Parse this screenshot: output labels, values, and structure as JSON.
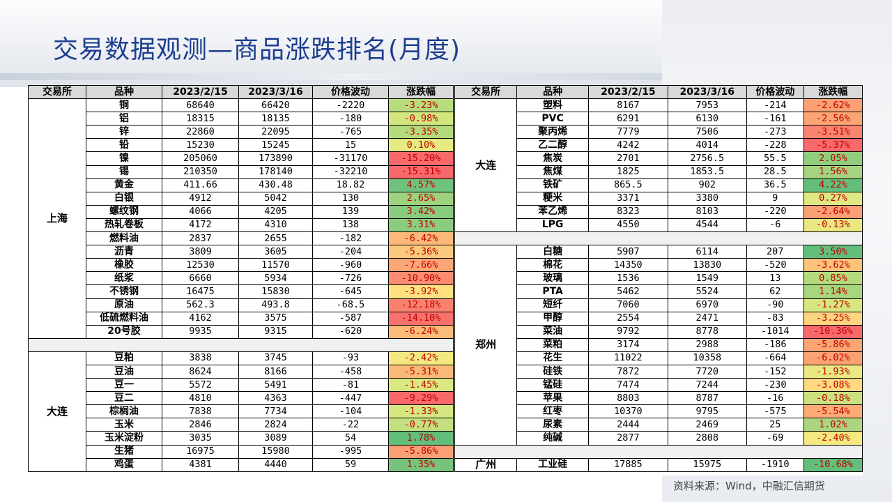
{
  "title": "交易数据观测—商品涨跌排名(月度)",
  "source": "资料来源：Wind，中融汇信期货",
  "headers": [
    "交易所",
    "品种",
    "2023/2/15",
    "2023/3/16",
    "价格波动",
    "涨跌幅"
  ],
  "left_groups": [
    {
      "exchange": "上海",
      "rows": [
        {
          "name": "铜",
          "p1": "68640",
          "p2": "66420",
          "diff": "-2220",
          "pct": "-3.23%",
          "color": "#b8dc7c"
        },
        {
          "name": "铝",
          "p1": "18315",
          "p2": "18135",
          "diff": "-180",
          "pct": "-0.98%",
          "color": "#d2e67e"
        },
        {
          "name": "锌",
          "p1": "22860",
          "p2": "22095",
          "diff": "-765",
          "pct": "-3.35%",
          "color": "#b5da7b"
        },
        {
          "name": "铅",
          "p1": "15230",
          "p2": "15245",
          "diff": "15",
          "pct": "0.10%",
          "color": "#e7ea80"
        },
        {
          "name": "镍",
          "p1": "205060",
          "p2": "173890",
          "diff": "-31170",
          "pct": "-15.20%",
          "color": "#f8696b"
        },
        {
          "name": "锡",
          "p1": "210350",
          "p2": "178140",
          "diff": "-32210",
          "pct": "-15.31%",
          "color": "#f8696b"
        },
        {
          "name": "黄金",
          "p1": "411.66",
          "p2": "430.48",
          "diff": "18.82",
          "pct": "4.57%",
          "color": "#6fc27c"
        },
        {
          "name": "白银",
          "p1": "4912",
          "p2": "5042",
          "diff": "130",
          "pct": "2.65%",
          "color": "#9ed27e"
        },
        {
          "name": "螺纹钢",
          "p1": "4066",
          "p2": "4205",
          "diff": "139",
          "pct": "3.42%",
          "color": "#88cc7e"
        },
        {
          "name": "热轧卷板",
          "p1": "4172",
          "p2": "4310",
          "diff": "138",
          "pct": "3.31%",
          "color": "#8bcd7e"
        },
        {
          "name": "燃料油",
          "p1": "2837",
          "p2": "2655",
          "diff": "-182",
          "pct": "-6.42%",
          "color": "#fbb878"
        },
        {
          "name": "沥青",
          "p1": "3809",
          "p2": "3605",
          "diff": "-204",
          "pct": "-5.36%",
          "color": "#fcc97c"
        },
        {
          "name": "橡胶",
          "p1": "12530",
          "p2": "11570",
          "diff": "-960",
          "pct": "-7.66%",
          "color": "#fba676"
        },
        {
          "name": "纸浆",
          "p1": "6660",
          "p2": "5934",
          "diff": "-726",
          "pct": "-10.90%",
          "color": "#fa8c71"
        },
        {
          "name": "不锈钢",
          "p1": "16475",
          "p2": "15830",
          "diff": "-645",
          "pct": "-3.92%",
          "color": "#fee282"
        },
        {
          "name": "原油",
          "p1": "562.3",
          "p2": "493.8",
          "diff": "-68.5",
          "pct": "-12.18%",
          "color": "#f9826f"
        },
        {
          "name": "低硫燃料油",
          "p1": "4162",
          "p2": "3575",
          "diff": "-587",
          "pct": "-14.10%",
          "color": "#f8716c"
        },
        {
          "name": "20号胶",
          "p1": "9935",
          "p2": "9315",
          "diff": "-620",
          "pct": "-6.24%",
          "color": "#fbbb79"
        }
      ]
    },
    {
      "exchange": "大连",
      "rows": [
        {
          "name": "豆粕",
          "p1": "3838",
          "p2": "3745",
          "diff": "-93",
          "pct": "-2.42%",
          "color": "#f4e981"
        },
        {
          "name": "豆油",
          "p1": "8624",
          "p2": "8166",
          "diff": "-458",
          "pct": "-5.31%",
          "color": "#f9b977"
        },
        {
          "name": "豆一",
          "p1": "5572",
          "p2": "5491",
          "diff": "-81",
          "pct": "-1.45%",
          "color": "#dbe880"
        },
        {
          "name": "豆二",
          "p1": "4810",
          "p2": "4363",
          "diff": "-447",
          "pct": "-9.29%",
          "color": "#f8696b"
        },
        {
          "name": "棕榈油",
          "p1": "7838",
          "p2": "7734",
          "diff": "-104",
          "pct": "-1.33%",
          "color": "#d6e680"
        },
        {
          "name": "玉米",
          "p1": "2846",
          "p2": "2824",
          "diff": "-22",
          "pct": "-0.77%",
          "color": "#c4df7e"
        },
        {
          "name": "玉米淀粉",
          "p1": "3035",
          "p2": "3089",
          "diff": "54",
          "pct": "1.78%",
          "color": "#63be7b"
        },
        {
          "name": "生猪",
          "p1": "16975",
          "p2": "15980",
          "diff": "-995",
          "pct": "-5.86%",
          "color": "#fa9f74"
        },
        {
          "name": "鸡蛋",
          "p1": "4381",
          "p2": "4440",
          "diff": "59",
          "pct": "1.35%",
          "color": "#79c47c"
        }
      ]
    }
  ],
  "right_groups": [
    {
      "exchange": "大连",
      "rows": [
        {
          "name": "塑料",
          "p1": "8167",
          "p2": "7953",
          "diff": "-214",
          "pct": "-2.62%",
          "color": "#fba074"
        },
        {
          "name": "PVC",
          "p1": "6291",
          "p2": "6130",
          "diff": "-161",
          "pct": "-2.56%",
          "color": "#fba575"
        },
        {
          "name": "聚丙烯",
          "p1": "7779",
          "p2": "7506",
          "diff": "-273",
          "pct": "-3.51%",
          "color": "#f9846f"
        },
        {
          "name": "乙二醇",
          "p1": "4242",
          "p2": "4014",
          "diff": "-228",
          "pct": "-5.37%",
          "color": "#f8696b"
        },
        {
          "name": "焦炭",
          "p1": "2701",
          "p2": "2756.5",
          "diff": "55.5",
          "pct": "2.05%",
          "color": "#90ce7e"
        },
        {
          "name": "焦煤",
          "p1": "1825",
          "p2": "1853.5",
          "diff": "28.5",
          "pct": "1.56%",
          "color": "#a4d47f"
        },
        {
          "name": "铁矿",
          "p1": "865.5",
          "p2": "902",
          "diff": "36.5",
          "pct": "4.22%",
          "color": "#63be7b"
        },
        {
          "name": "粳米",
          "p1": "3371",
          "p2": "3380",
          "diff": "9",
          "pct": "0.27%",
          "color": "#dfe881"
        },
        {
          "name": "苯乙烯",
          "p1": "8323",
          "p2": "8103",
          "diff": "-220",
          "pct": "-2.64%",
          "color": "#fb9f74"
        },
        {
          "name": "LPG",
          "p1": "4550",
          "p2": "4544",
          "diff": "-6",
          "pct": "-0.13%",
          "color": "#eae881"
        }
      ]
    },
    {
      "exchange": "郑州",
      "rows": [
        {
          "name": "白糖",
          "p1": "5907",
          "p2": "6114",
          "diff": "207",
          "pct": "3.50%",
          "color": "#63be7b"
        },
        {
          "name": "棉花",
          "p1": "14350",
          "p2": "13830",
          "diff": "-520",
          "pct": "-3.62%",
          "color": "#fcc37b"
        },
        {
          "name": "玻璃",
          "p1": "1536",
          "p2": "1549",
          "diff": "13",
          "pct": "0.85%",
          "color": "#b5da7b"
        },
        {
          "name": "PTA",
          "p1": "5462",
          "p2": "5524",
          "diff": "62",
          "pct": "1.14%",
          "color": "#a8d57f"
        },
        {
          "name": "短纤",
          "p1": "7060",
          "p2": "6970",
          "diff": "-90",
          "pct": "-1.27%",
          "color": "#d7e680"
        },
        {
          "name": "甲醇",
          "p1": "2554",
          "p2": "2471",
          "diff": "-83",
          "pct": "-3.25%",
          "color": "#fdd47f"
        },
        {
          "name": "菜油",
          "p1": "9792",
          "p2": "8778",
          "diff": "-1014",
          "pct": "-10.36%",
          "color": "#f8696b"
        },
        {
          "name": "菜粕",
          "p1": "3174",
          "p2": "2988",
          "diff": "-186",
          "pct": "-5.86%",
          "color": "#fba575"
        },
        {
          "name": "花生",
          "p1": "11022",
          "p2": "10358",
          "diff": "-664",
          "pct": "-6.02%",
          "color": "#fba274"
        },
        {
          "name": "硅铁",
          "p1": "7872",
          "p2": "7720",
          "diff": "-152",
          "pct": "-1.93%",
          "color": "#e9e882"
        },
        {
          "name": "锰硅",
          "p1": "7474",
          "p2": "7244",
          "diff": "-230",
          "pct": "-3.08%",
          "color": "#fed981"
        },
        {
          "name": "苹果",
          "p1": "8803",
          "p2": "8787",
          "diff": "-16",
          "pct": "-0.18%",
          "color": "#cae17e"
        },
        {
          "name": "红枣",
          "p1": "10370",
          "p2": "9795",
          "diff": "-575",
          "pct": "-5.54%",
          "color": "#fbab76"
        },
        {
          "name": "尿素",
          "p1": "2444",
          "p2": "2469",
          "diff": "25",
          "pct": "1.02%",
          "color": "#abd67f"
        },
        {
          "name": "纯碱",
          "p1": "2877",
          "p2": "2808",
          "diff": "-69",
          "pct": "-2.40%",
          "color": "#f4e981"
        }
      ]
    },
    {
      "exchange": "广州",
      "rows": [
        {
          "name": "工业硅",
          "p1": "17885",
          "p2": "15975",
          "diff": "-1910",
          "pct": "-10.68%",
          "color": "#63be7b"
        }
      ]
    }
  ]
}
